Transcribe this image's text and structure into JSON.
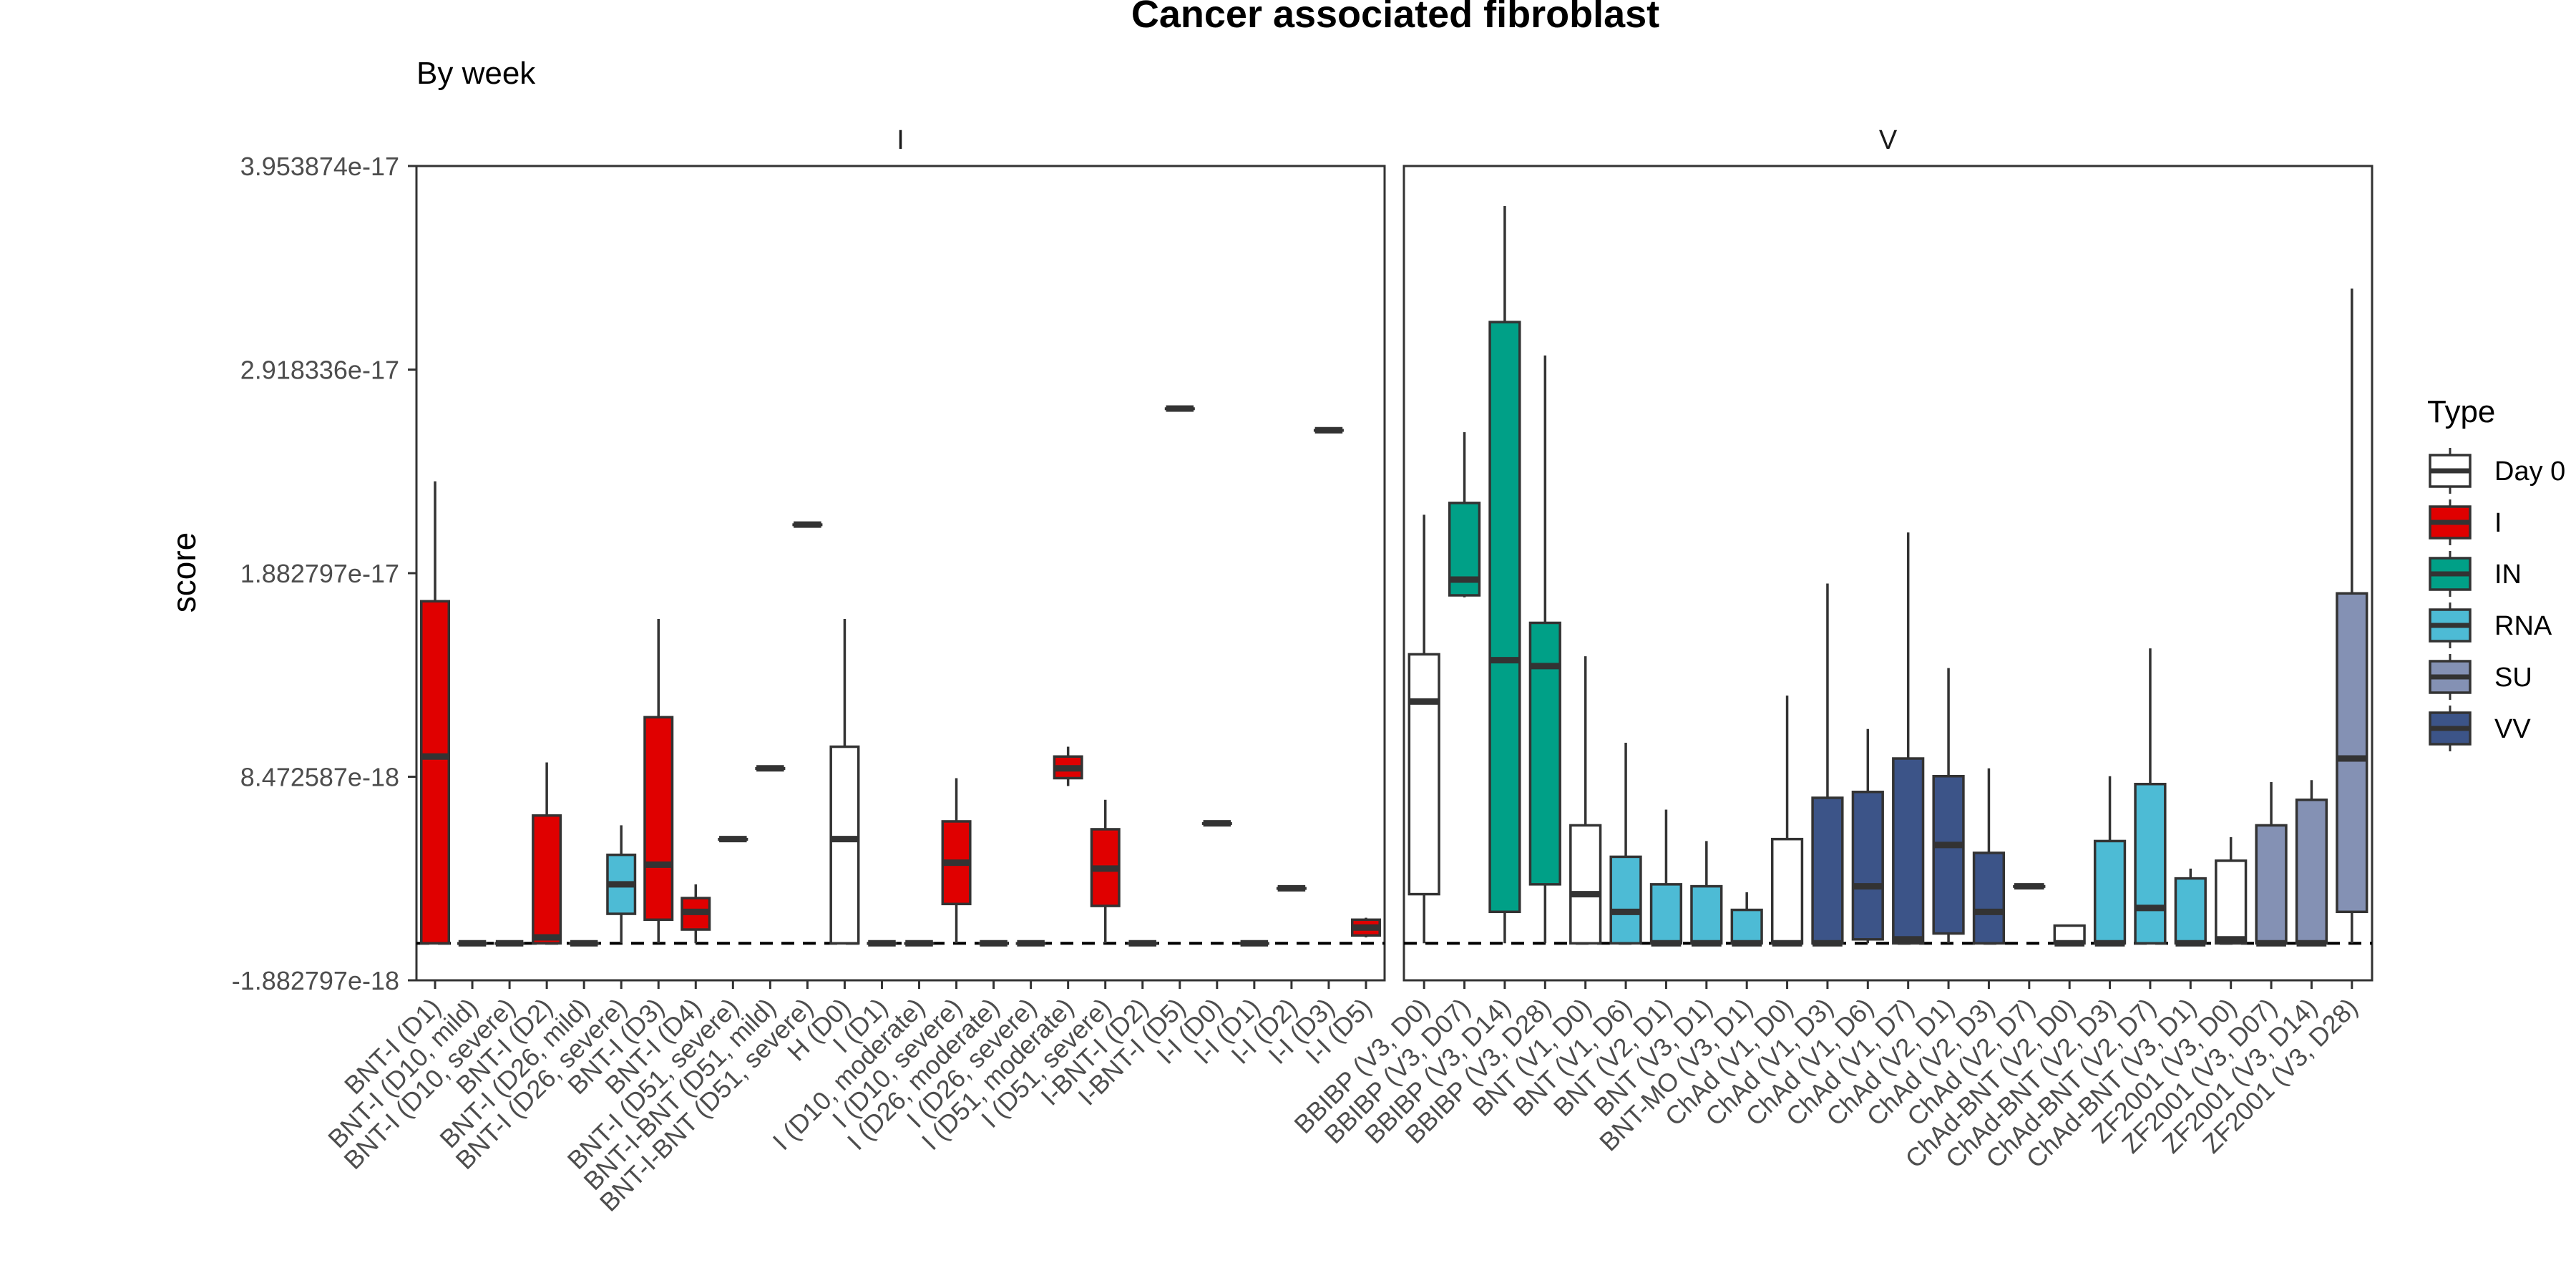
{
  "title": "Cancer associated fibroblast",
  "subtitle": "By week",
  "chart_data": {
    "type": "boxplot",
    "title": "Cancer associated fibroblast",
    "subtitle": "By week",
    "ylabel": "score",
    "xlabel": "",
    "ylim": [
      -1.882797e-18,
      3.953874e-17
    ],
    "y_ticks": [
      -1.882797e-18,
      8.472587e-18,
      1.882797e-17,
      2.918336e-17,
      3.953874e-17
    ],
    "y_tick_labels": [
      "-1.882797e-18",
      "8.472587e-18",
      "1.882797e-17",
      "2.918336e-17",
      "3.953874e-17"
    ],
    "reference_line": 0,
    "grid": false,
    "legend": {
      "title": "Type",
      "position": "right",
      "entries": [
        {
          "name": "Day 0",
          "color": "#ffffff"
        },
        {
          "name": "I",
          "color": "#e00000"
        },
        {
          "name": "IN",
          "color": "#00a087"
        },
        {
          "name": "RNA",
          "color": "#4dbbd5"
        },
        {
          "name": "SU",
          "color": "#8491b4"
        },
        {
          "name": "VV",
          "color": "#3c5488"
        }
      ]
    },
    "panels": [
      {
        "label": "I",
        "categories": [
          {
            "name": "BNT-I (D1)",
            "type": "I",
            "min": 0,
            "q1": 0,
            "median": 9.5e-18,
            "q3": 1.74e-17,
            "max": 2.35e-17
          },
          {
            "name": "BNT-I (D10, mild)",
            "type": "I",
            "min": 0,
            "q1": 0,
            "median": 0,
            "q3": 0,
            "max": 0
          },
          {
            "name": "BNT-I (D10, severe)",
            "type": "I",
            "min": 0,
            "q1": 0,
            "median": 0,
            "q3": 0,
            "max": 0
          },
          {
            "name": "BNT-I (D2)",
            "type": "I",
            "min": 0,
            "q1": 0,
            "median": 3e-19,
            "q3": 6.5e-18,
            "max": 9.2e-18
          },
          {
            "name": "BNT-I (D26, mild)",
            "type": "I",
            "min": 0,
            "q1": 0,
            "median": 0,
            "q3": 0,
            "max": 0
          },
          {
            "name": "BNT-I (D26, severe)",
            "type": "RNA",
            "min": 0,
            "q1": 1.5e-18,
            "median": 3e-18,
            "q3": 4.5e-18,
            "max": 6e-18
          },
          {
            "name": "BNT-I (D3)",
            "type": "I",
            "min": 0,
            "q1": 1.2e-18,
            "median": 4e-18,
            "q3": 1.15e-17,
            "max": 1.65e-17
          },
          {
            "name": "BNT-I (D4)",
            "type": "I",
            "min": 0,
            "q1": 7e-19,
            "median": 1.6e-18,
            "q3": 2.3e-18,
            "max": 3e-18
          },
          {
            "name": "BNT-I (D51, severe)",
            "type": "I",
            "min": 5.3e-18,
            "q1": 5.3e-18,
            "median": 5.3e-18,
            "q3": 5.3e-18,
            "max": 5.3e-18
          },
          {
            "name": "BNT-I-BNT (D51, mild)",
            "type": "I",
            "min": 8.9e-18,
            "q1": 8.9e-18,
            "median": 8.9e-18,
            "q3": 8.9e-18,
            "max": 8.9e-18
          },
          {
            "name": "BNT-I-BNT (D51, severe)",
            "type": "I",
            "min": 2.13e-17,
            "q1": 2.13e-17,
            "median": 2.13e-17,
            "q3": 2.13e-17,
            "max": 2.13e-17
          },
          {
            "name": "H (D0)",
            "type": "Day 0",
            "min": 0,
            "q1": 0,
            "median": 5.3e-18,
            "q3": 1e-17,
            "max": 1.65e-17
          },
          {
            "name": "I (D1)",
            "type": "I",
            "min": 0,
            "q1": 0,
            "median": 0,
            "q3": 0,
            "max": 0
          },
          {
            "name": "I (D10, moderate)",
            "type": "I",
            "min": 0,
            "q1": 0,
            "median": 0,
            "q3": 0,
            "max": 0
          },
          {
            "name": "I (D10, severe)",
            "type": "I",
            "min": 0,
            "q1": 2e-18,
            "median": 4.1e-18,
            "q3": 6.2e-18,
            "max": 8.4e-18
          },
          {
            "name": "I (D26, moderate)",
            "type": "I",
            "min": 0,
            "q1": 0,
            "median": 0,
            "q3": 0,
            "max": 0
          },
          {
            "name": "I (D26, severe)",
            "type": "I",
            "min": 0,
            "q1": 0,
            "median": 0,
            "q3": 0,
            "max": 0
          },
          {
            "name": "I (D51, moderate)",
            "type": "I",
            "min": 8e-18,
            "q1": 8.4e-18,
            "median": 8.9e-18,
            "q3": 9.5e-18,
            "max": 1e-17
          },
          {
            "name": "I (D51, severe)",
            "type": "I",
            "min": 0,
            "q1": 1.9e-18,
            "median": 3.8e-18,
            "q3": 5.8e-18,
            "max": 7.3e-18
          },
          {
            "name": "I-BNT-I (D2)",
            "type": "I",
            "min": 0,
            "q1": 0,
            "median": 0,
            "q3": 0,
            "max": 0
          },
          {
            "name": "I-BNT-I (D5)",
            "type": "I",
            "min": 2.72e-17,
            "q1": 2.72e-17,
            "median": 2.72e-17,
            "q3": 2.72e-17,
            "max": 2.72e-17
          },
          {
            "name": "I-I (D0)",
            "type": "I",
            "min": 6.1e-18,
            "q1": 6.1e-18,
            "median": 6.1e-18,
            "q3": 6.1e-18,
            "max": 6.1e-18
          },
          {
            "name": "I-I (D1)",
            "type": "I",
            "min": 0,
            "q1": 0,
            "median": 0,
            "q3": 0,
            "max": 0
          },
          {
            "name": "I-I (D2)",
            "type": "I",
            "min": 2.8e-18,
            "q1": 2.8e-18,
            "median": 2.8e-18,
            "q3": 2.8e-18,
            "max": 2.8e-18
          },
          {
            "name": "I-I (D3)",
            "type": "I",
            "min": 2.61e-17,
            "q1": 2.61e-17,
            "median": 2.61e-17,
            "q3": 2.61e-17,
            "max": 2.61e-17
          },
          {
            "name": "I-I (D5)",
            "type": "I",
            "min": 3e-19,
            "q1": 4e-19,
            "median": 8e-19,
            "q3": 1.2e-18,
            "max": 1.3e-18
          }
        ]
      },
      {
        "label": "V",
        "categories": [
          {
            "name": "BBIBP (V3, D0)",
            "type": "Day 0",
            "min": 0,
            "q1": 2.5e-18,
            "median": 1.23e-17,
            "q3": 1.47e-17,
            "max": 2.18e-17
          },
          {
            "name": "BBIBP (V3, D07)",
            "type": "IN",
            "min": 1.76e-17,
            "q1": 1.77e-17,
            "median": 1.85e-17,
            "q3": 2.24e-17,
            "max": 2.6e-17
          },
          {
            "name": "BBIBP (V3, D14)",
            "type": "IN",
            "min": 0,
            "q1": 1.6e-18,
            "median": 1.44e-17,
            "q3": 3.16e-17,
            "max": 3.75e-17
          },
          {
            "name": "BBIBP (V3, D28)",
            "type": "IN",
            "min": 0,
            "q1": 3e-18,
            "median": 1.41e-17,
            "q3": 1.63e-17,
            "max": 2.99e-17
          },
          {
            "name": "BNT (V1, D0)",
            "type": "Day 0",
            "min": 0,
            "q1": 0,
            "median": 2.5e-18,
            "q3": 6e-18,
            "max": 1.46e-17
          },
          {
            "name": "BNT (V1, D6)",
            "type": "RNA",
            "min": 0,
            "q1": 0,
            "median": 1.6e-18,
            "q3": 4.4e-18,
            "max": 1.02e-17
          },
          {
            "name": "BNT (V2, D1)",
            "type": "RNA",
            "min": 0,
            "q1": 0,
            "median": 0,
            "q3": 3e-18,
            "max": 6.8e-18
          },
          {
            "name": "BNT (V3, D1)",
            "type": "RNA",
            "min": 0,
            "q1": 0,
            "median": 0,
            "q3": 2.9e-18,
            "max": 5.2e-18
          },
          {
            "name": "BNT-MO (V3, D1)",
            "type": "RNA",
            "min": 0,
            "q1": 0,
            "median": 0,
            "q3": 1.7e-18,
            "max": 2.6e-18
          },
          {
            "name": "ChAd (V1, D0)",
            "type": "Day 0",
            "min": 0,
            "q1": 0,
            "median": 0,
            "q3": 5.3e-18,
            "max": 1.26e-17
          },
          {
            "name": "ChAd (V1, D3)",
            "type": "VV",
            "min": 0,
            "q1": 0,
            "median": 0,
            "q3": 7.4e-18,
            "max": 1.83e-17
          },
          {
            "name": "ChAd (V1, D6)",
            "type": "VV",
            "min": 0,
            "q1": 2e-19,
            "median": 2.9e-18,
            "q3": 7.7e-18,
            "max": 1.09e-17
          },
          {
            "name": "ChAd (V1, D7)",
            "type": "VV",
            "min": 0,
            "q1": 0,
            "median": 2e-19,
            "q3": 9.4e-18,
            "max": 2.09e-17
          },
          {
            "name": "ChAd (V2, D1)",
            "type": "VV",
            "min": 0,
            "q1": 5e-19,
            "median": 5e-18,
            "q3": 8.5e-18,
            "max": 1.4e-17
          },
          {
            "name": "ChAd (V2, D3)",
            "type": "VV",
            "min": 0,
            "q1": 0,
            "median": 1.6e-18,
            "q3": 4.6e-18,
            "max": 8.9e-18
          },
          {
            "name": "ChAd (V2, D7)",
            "type": "VV",
            "min": 2.9e-18,
            "q1": 2.9e-18,
            "median": 2.9e-18,
            "q3": 2.9e-18,
            "max": 2.9e-18
          },
          {
            "name": "ChAd-BNT (V2, D0)",
            "type": "Day 0",
            "min": 0,
            "q1": 0,
            "median": 0,
            "q3": 9e-19,
            "max": 9e-19
          },
          {
            "name": "ChAd-BNT (V2, D3)",
            "type": "RNA",
            "min": 0,
            "q1": 0,
            "median": 0,
            "q3": 5.2e-18,
            "max": 8.5e-18
          },
          {
            "name": "ChAd-BNT (V2, D7)",
            "type": "RNA",
            "min": 0,
            "q1": 0,
            "median": 1.8e-18,
            "q3": 8.1e-18,
            "max": 1.5e-17
          },
          {
            "name": "ChAd-BNT (V3, D1)",
            "type": "RNA",
            "min": 0,
            "q1": 0,
            "median": 0,
            "q3": 3.3e-18,
            "max": 3.8e-18
          },
          {
            "name": "ZF2001 (V3, D0)",
            "type": "Day 0",
            "min": 0,
            "q1": 0,
            "median": 2e-19,
            "q3": 4.2e-18,
            "max": 5.4e-18
          },
          {
            "name": "ZF2001 (V3, D07)",
            "type": "SU",
            "min": 0,
            "q1": 0,
            "median": 0,
            "q3": 6e-18,
            "max": 8.2e-18
          },
          {
            "name": "ZF2001 (V3, D14)",
            "type": "SU",
            "min": 0,
            "q1": 0,
            "median": 0,
            "q3": 7.3e-18,
            "max": 8.3e-18
          },
          {
            "name": "ZF2001 (V3, D28)",
            "type": "SU",
            "min": 0,
            "q1": 1.6e-18,
            "median": 9.4e-18,
            "q3": 1.78e-17,
            "max": 3.33e-17
          }
        ]
      }
    ]
  }
}
